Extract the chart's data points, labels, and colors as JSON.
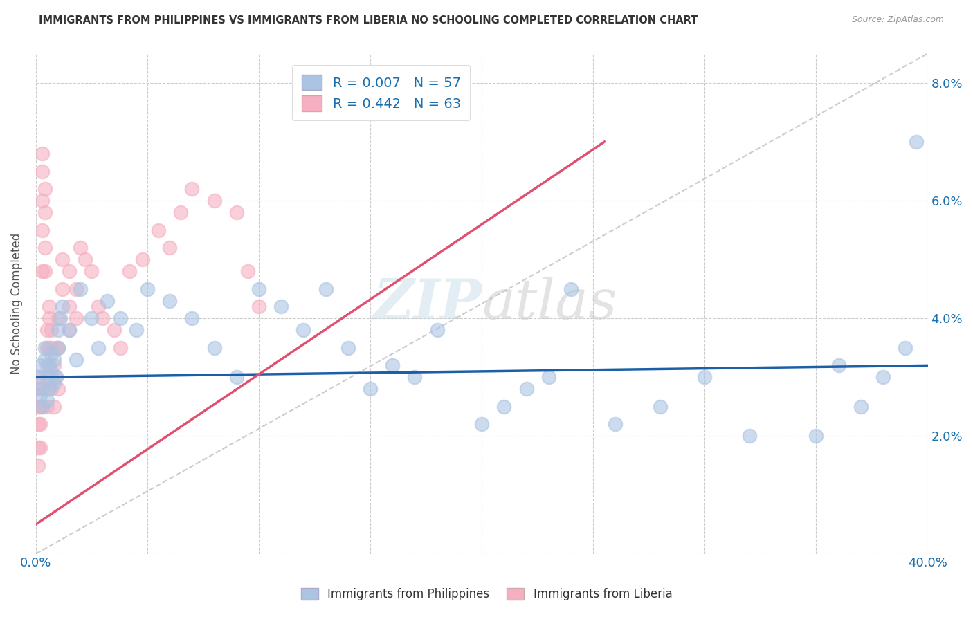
{
  "title": "IMMIGRANTS FROM PHILIPPINES VS IMMIGRANTS FROM LIBERIA NO SCHOOLING COMPLETED CORRELATION CHART",
  "source": "Source: ZipAtlas.com",
  "ylabel": "No Schooling Completed",
  "xlim": [
    0.0,
    0.4
  ],
  "ylim": [
    0.0,
    0.085
  ],
  "philippines_color": "#aac4e2",
  "liberia_color": "#f5afc0",
  "philippines_line_color": "#1a5fa8",
  "liberia_line_color": "#e05070",
  "diagonal_color": "#cccccc",
  "r_philippines": 0.007,
  "n_philippines": 57,
  "r_liberia": 0.442,
  "n_liberia": 63,
  "legend_text_color": "#1a6faf",
  "philippines_x": [
    0.001,
    0.002,
    0.002,
    0.003,
    0.003,
    0.004,
    0.004,
    0.005,
    0.005,
    0.006,
    0.006,
    0.007,
    0.007,
    0.008,
    0.008,
    0.009,
    0.01,
    0.01,
    0.011,
    0.012,
    0.015,
    0.018,
    0.02,
    0.025,
    0.028,
    0.032,
    0.038,
    0.045,
    0.05,
    0.06,
    0.07,
    0.08,
    0.09,
    0.1,
    0.11,
    0.12,
    0.13,
    0.14,
    0.15,
    0.16,
    0.17,
    0.18,
    0.2,
    0.21,
    0.22,
    0.23,
    0.24,
    0.26,
    0.28,
    0.3,
    0.32,
    0.35,
    0.36,
    0.37,
    0.38,
    0.39,
    0.395
  ],
  "philippines_y": [
    0.03,
    0.027,
    0.032,
    0.028,
    0.025,
    0.033,
    0.035,
    0.03,
    0.026,
    0.032,
    0.028,
    0.031,
    0.034,
    0.029,
    0.033,
    0.03,
    0.038,
    0.035,
    0.04,
    0.042,
    0.038,
    0.033,
    0.045,
    0.04,
    0.035,
    0.043,
    0.04,
    0.038,
    0.045,
    0.043,
    0.04,
    0.035,
    0.03,
    0.045,
    0.042,
    0.038,
    0.045,
    0.035,
    0.028,
    0.032,
    0.03,
    0.038,
    0.022,
    0.025,
    0.028,
    0.03,
    0.045,
    0.022,
    0.025,
    0.03,
    0.02,
    0.02,
    0.032,
    0.025,
    0.03,
    0.035,
    0.07
  ],
  "liberia_x": [
    0.001,
    0.001,
    0.001,
    0.001,
    0.001,
    0.002,
    0.002,
    0.002,
    0.002,
    0.002,
    0.003,
    0.003,
    0.003,
    0.003,
    0.003,
    0.003,
    0.004,
    0.004,
    0.004,
    0.004,
    0.005,
    0.005,
    0.005,
    0.005,
    0.005,
    0.006,
    0.006,
    0.006,
    0.006,
    0.007,
    0.007,
    0.007,
    0.008,
    0.008,
    0.009,
    0.009,
    0.01,
    0.01,
    0.01,
    0.012,
    0.012,
    0.015,
    0.015,
    0.015,
    0.018,
    0.018,
    0.02,
    0.022,
    0.025,
    0.028,
    0.03,
    0.035,
    0.038,
    0.042,
    0.048,
    0.055,
    0.06,
    0.065,
    0.07,
    0.08,
    0.09,
    0.095,
    0.1
  ],
  "liberia_y": [
    0.028,
    0.025,
    0.022,
    0.018,
    0.015,
    0.03,
    0.028,
    0.025,
    0.022,
    0.018,
    0.068,
    0.065,
    0.06,
    0.055,
    0.048,
    0.025,
    0.062,
    0.058,
    0.052,
    0.048,
    0.038,
    0.035,
    0.032,
    0.028,
    0.025,
    0.042,
    0.04,
    0.035,
    0.03,
    0.038,
    0.035,
    0.028,
    0.032,
    0.025,
    0.035,
    0.03,
    0.04,
    0.035,
    0.028,
    0.05,
    0.045,
    0.048,
    0.042,
    0.038,
    0.045,
    0.04,
    0.052,
    0.05,
    0.048,
    0.042,
    0.04,
    0.038,
    0.035,
    0.048,
    0.05,
    0.055,
    0.052,
    0.058,
    0.062,
    0.06,
    0.058,
    0.048,
    0.042
  ],
  "phil_line_x": [
    0.0,
    0.4
  ],
  "phil_line_y": [
    0.03,
    0.032
  ],
  "lib_line_x": [
    0.0,
    0.255
  ],
  "lib_line_y": [
    0.005,
    0.07
  ]
}
